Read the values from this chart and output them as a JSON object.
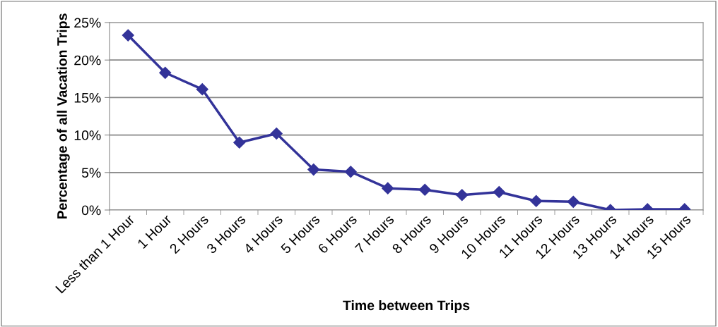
{
  "chart_data": {
    "type": "line",
    "xlabel": "Time between Trips",
    "ylabel": "Percentage of all Vacation Trips",
    "categories": [
      "Less than 1 Hour",
      "1 Hour",
      "2 Hours",
      "3 Hours",
      "4 Hours",
      "5 Hours",
      "6 Hours",
      "7 Hours",
      "8 Hours",
      "9 Hours",
      "10 Hours",
      "11 Hours",
      "12 Hours",
      "13 Hours",
      "14 Hours",
      "15 Hours"
    ],
    "series": [
      {
        "color": "#333399",
        "values": [
          23.3,
          18.3,
          16.1,
          9.0,
          10.2,
          5.4,
          5.1,
          2.9,
          2.7,
          2.0,
          2.4,
          1.2,
          1.1,
          0,
          0.1,
          0.1
        ]
      }
    ],
    "ylim": [
      0,
      25
    ],
    "yticks": [
      {
        "value": 0,
        "label": "0%"
      },
      {
        "value": 5,
        "label": "5%"
      },
      {
        "value": 10,
        "label": "10%"
      },
      {
        "value": 15,
        "label": "15%"
      },
      {
        "value": 20,
        "label": "20%"
      },
      {
        "value": 25,
        "label": "25%"
      }
    ],
    "grid": "y",
    "marker": "diamond",
    "line_style": "solid"
  }
}
